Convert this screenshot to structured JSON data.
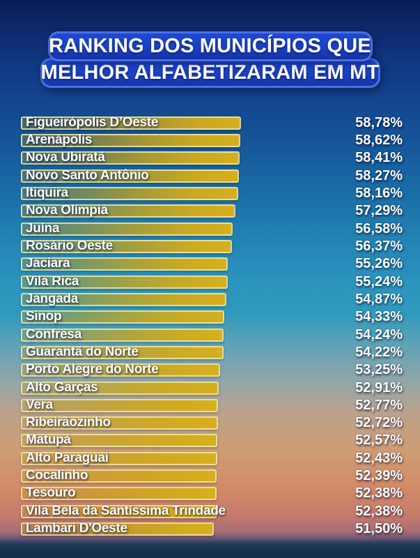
{
  "title": {
    "line1": "RANKING DOS MUNICÍPIOS QUE",
    "line2": "MELHOR ALFABETIZARAM EM MT"
  },
  "chart_data": {
    "type": "bar",
    "orientation": "horizontal",
    "title": "Ranking dos municípios que melhor alfabetizaram em MT",
    "unit": "%",
    "xlim": [
      0,
      60
    ],
    "grid": false,
    "legend": "none",
    "categories": [
      "Figueirópolis D’Oeste",
      "Arenápolis",
      "Nova Ubiratã",
      "Novo Santo Antônio",
      "Itiquira",
      "Nova Olímpia",
      "Juína",
      "Rosário Oeste",
      "Jaciara",
      "Vila Rica",
      "Jangada",
      "Sinop",
      "Confresa",
      "Guarantã do Norte",
      "Porto Alegre do Norte",
      "Alto Garças",
      "Vera",
      "Ribeirãozinho",
      "Matupá",
      "Alto Paraguai",
      "Cocalinho",
      "Tesouro",
      "Vila Bela da Santíssima Trindade",
      "Lambari D'Oeste"
    ],
    "values": [
      58.78,
      58.62,
      58.41,
      58.27,
      58.16,
      57.29,
      56.58,
      56.37,
      55.26,
      55.24,
      54.87,
      54.33,
      54.24,
      54.22,
      53.25,
      52.91,
      52.77,
      52.72,
      52.57,
      52.43,
      52.39,
      52.38,
      52.38,
      51.5
    ],
    "value_labels": [
      "58,78%",
      "58,62%",
      "58,41%",
      "58,27%",
      "58,16%",
      "57,29%",
      "56,58%",
      "56,37%",
      "55,26%",
      "55,24%",
      "54,87%",
      "54,33%",
      "54,24%",
      "54,22%",
      "53,25%",
      "52,91%",
      "52,77%",
      "52,72%",
      "52,57%",
      "52,43%",
      "52,39%",
      "52,38%",
      "52,38%",
      "51,50%"
    ]
  },
  "colors": {
    "bar_fill": "#d4af1e",
    "bar_border": "#eeeaa6",
    "title_box_fill": "#1a41c4",
    "title_box_outline": "#4c6fe0",
    "text": "#ffffff",
    "sky_top": "#0a1d55",
    "sky_mid": "#2b93bd",
    "sunset": "#d28a68",
    "water": "#132e49"
  }
}
